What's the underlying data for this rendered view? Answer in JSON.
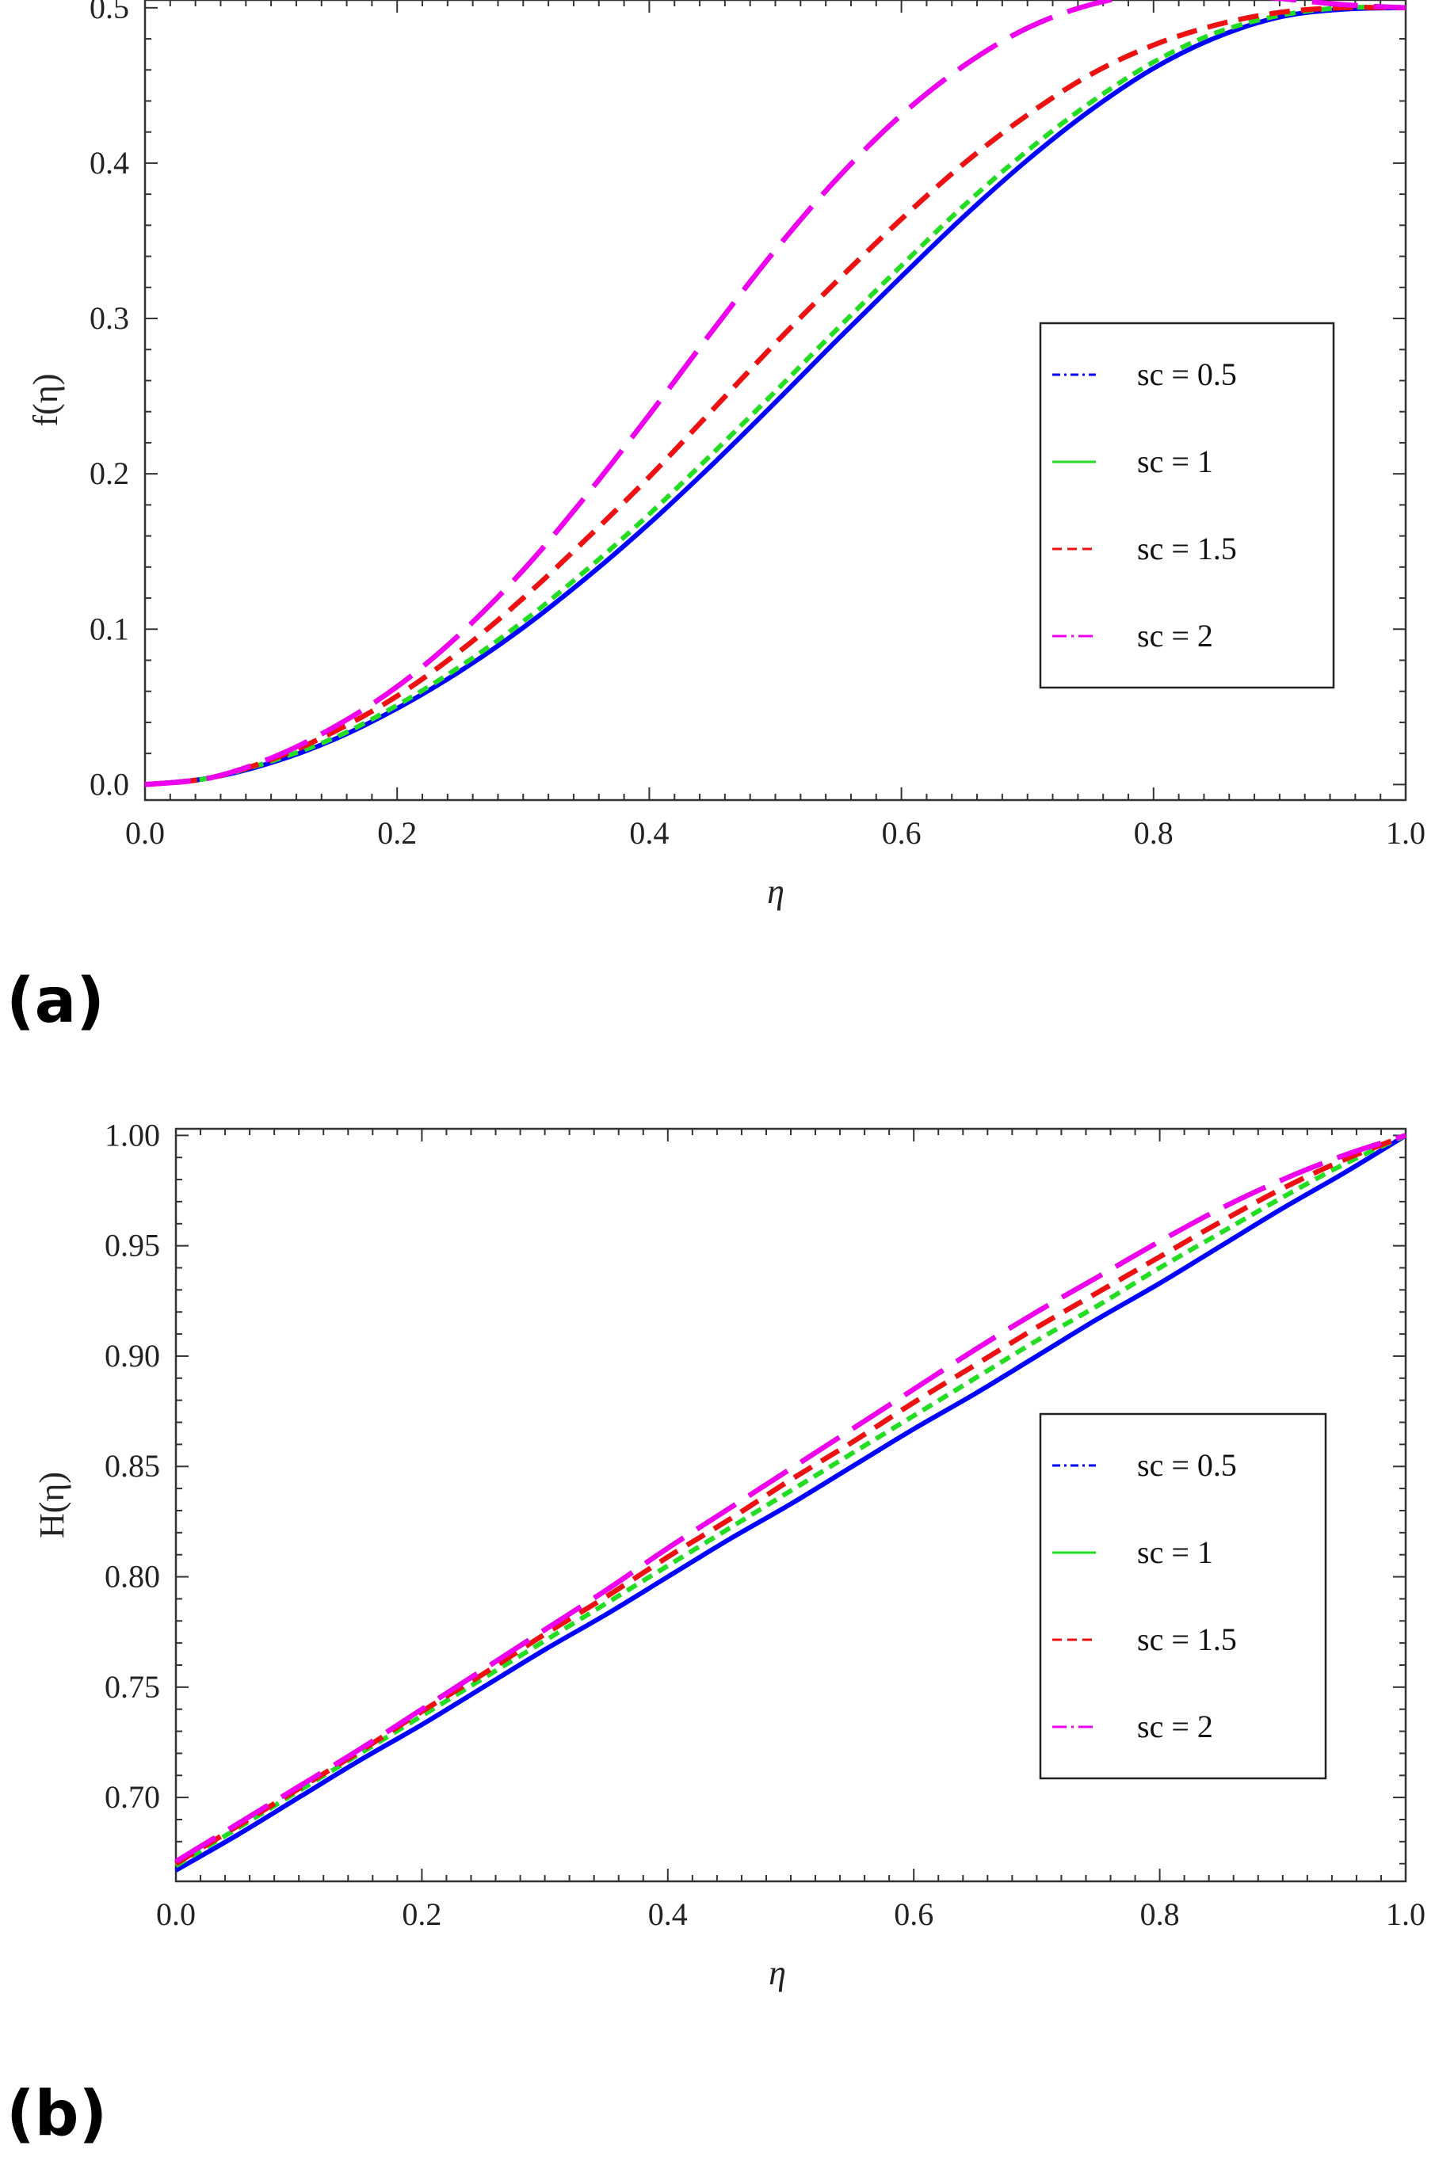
{
  "chart_data": [
    {
      "type": "line",
      "panel_label": "(a)",
      "xlabel": "η",
      "ylabel": "f(η)",
      "xlim": [
        0.0,
        1.0
      ],
      "ylim": [
        -0.01,
        0.505
      ],
      "xticks": [
        "0.0",
        "0.2",
        "0.4",
        "0.6",
        "0.8",
        "1.0"
      ],
      "yticks": [
        "0.0",
        "0.1",
        "0.2",
        "0.3",
        "0.4",
        "0.5"
      ],
      "legend_position": "right",
      "x": [
        0.0,
        0.05,
        0.1,
        0.15,
        0.2,
        0.25,
        0.3,
        0.35,
        0.4,
        0.45,
        0.5,
        0.55,
        0.6,
        0.65,
        0.7,
        0.75,
        0.8,
        0.85,
        0.9,
        0.95,
        1.0
      ],
      "series": [
        {
          "name": "sc = 0.5",
          "color": "#0000ff",
          "dash": "solid",
          "values": [
            0.0,
            0.004,
            0.014,
            0.029,
            0.049,
            0.073,
            0.101,
            0.133,
            0.168,
            0.206,
            0.246,
            0.287,
            0.327,
            0.366,
            0.402,
            0.434,
            0.461,
            0.481,
            0.494,
            0.499,
            0.5
          ]
        },
        {
          "name": "sc  = 1",
          "color": "#22dd22",
          "dash": "short",
          "values": [
            0.0,
            0.004,
            0.015,
            0.03,
            0.051,
            0.076,
            0.105,
            0.138,
            0.174,
            0.213,
            0.253,
            0.294,
            0.334,
            0.373,
            0.408,
            0.439,
            0.465,
            0.484,
            0.495,
            0.5,
            0.5
          ]
        },
        {
          "name": "sc = 1.5",
          "color": "#ee1111",
          "dash": "medium",
          "values": [
            0.0,
            0.004,
            0.016,
            0.034,
            0.057,
            0.086,
            0.12,
            0.158,
            0.198,
            0.241,
            0.284,
            0.325,
            0.364,
            0.4,
            0.431,
            0.457,
            0.476,
            0.489,
            0.497,
            0.5,
            0.5
          ]
        },
        {
          "name": "sc  = 2",
          "color": "#ee00ee",
          "dash": "long",
          "values": [
            0.0,
            0.004,
            0.017,
            0.037,
            0.063,
            0.097,
            0.138,
            0.186,
            0.238,
            0.292,
            0.344,
            0.391,
            0.431,
            0.463,
            0.487,
            0.502,
            0.509,
            0.509,
            0.506,
            0.502,
            0.5
          ]
        }
      ]
    },
    {
      "type": "line",
      "panel_label": "(b)",
      "xlabel": "η",
      "ylabel": "H(η)",
      "xlim": [
        0.0,
        1.0
      ],
      "ylim": [
        0.662,
        1.003
      ],
      "xticks": [
        "0.0",
        "0.2",
        "0.4",
        "0.6",
        "0.8",
        "1.0"
      ],
      "yticks": [
        "0.70",
        "0.75",
        "0.80",
        "0.85",
        "0.90",
        "0.95",
        "1.00"
      ],
      "legend_position": "right",
      "x": [
        0.0,
        0.05,
        0.1,
        0.15,
        0.2,
        0.25,
        0.3,
        0.35,
        0.4,
        0.45,
        0.5,
        0.55,
        0.6,
        0.65,
        0.7,
        0.75,
        0.8,
        0.85,
        0.9,
        0.95,
        1.0
      ],
      "series": [
        {
          "name": "sc = 0.5",
          "color": "#0000ff",
          "dash": "solid",
          "values": [
            0.667,
            0.683,
            0.7,
            0.717,
            0.733,
            0.75,
            0.767,
            0.783,
            0.8,
            0.817,
            0.833,
            0.85,
            0.867,
            0.883,
            0.9,
            0.917,
            0.933,
            0.95,
            0.967,
            0.983,
            1.0
          ]
        },
        {
          "name": "sc  = 1",
          "color": "#22dd22",
          "dash": "short",
          "values": [
            0.669,
            0.686,
            0.703,
            0.72,
            0.737,
            0.754,
            0.771,
            0.788,
            0.805,
            0.822,
            0.839,
            0.856,
            0.873,
            0.89,
            0.907,
            0.923,
            0.94,
            0.956,
            0.972,
            0.987,
            1.0
          ]
        },
        {
          "name": "sc = 1.5",
          "color": "#ee1111",
          "dash": "medium",
          "values": [
            0.67,
            0.687,
            0.704,
            0.721,
            0.739,
            0.756,
            0.774,
            0.791,
            0.809,
            0.826,
            0.844,
            0.861,
            0.879,
            0.896,
            0.913,
            0.929,
            0.945,
            0.961,
            0.976,
            0.989,
            1.0
          ]
        },
        {
          "name": "sc  = 2",
          "color": "#ee00ee",
          "dash": "long",
          "values": [
            0.671,
            0.688,
            0.705,
            0.722,
            0.74,
            0.758,
            0.776,
            0.794,
            0.813,
            0.831,
            0.849,
            0.867,
            0.885,
            0.903,
            0.92,
            0.936,
            0.952,
            0.967,
            0.98,
            0.991,
            1.0
          ]
        }
      ]
    }
  ]
}
